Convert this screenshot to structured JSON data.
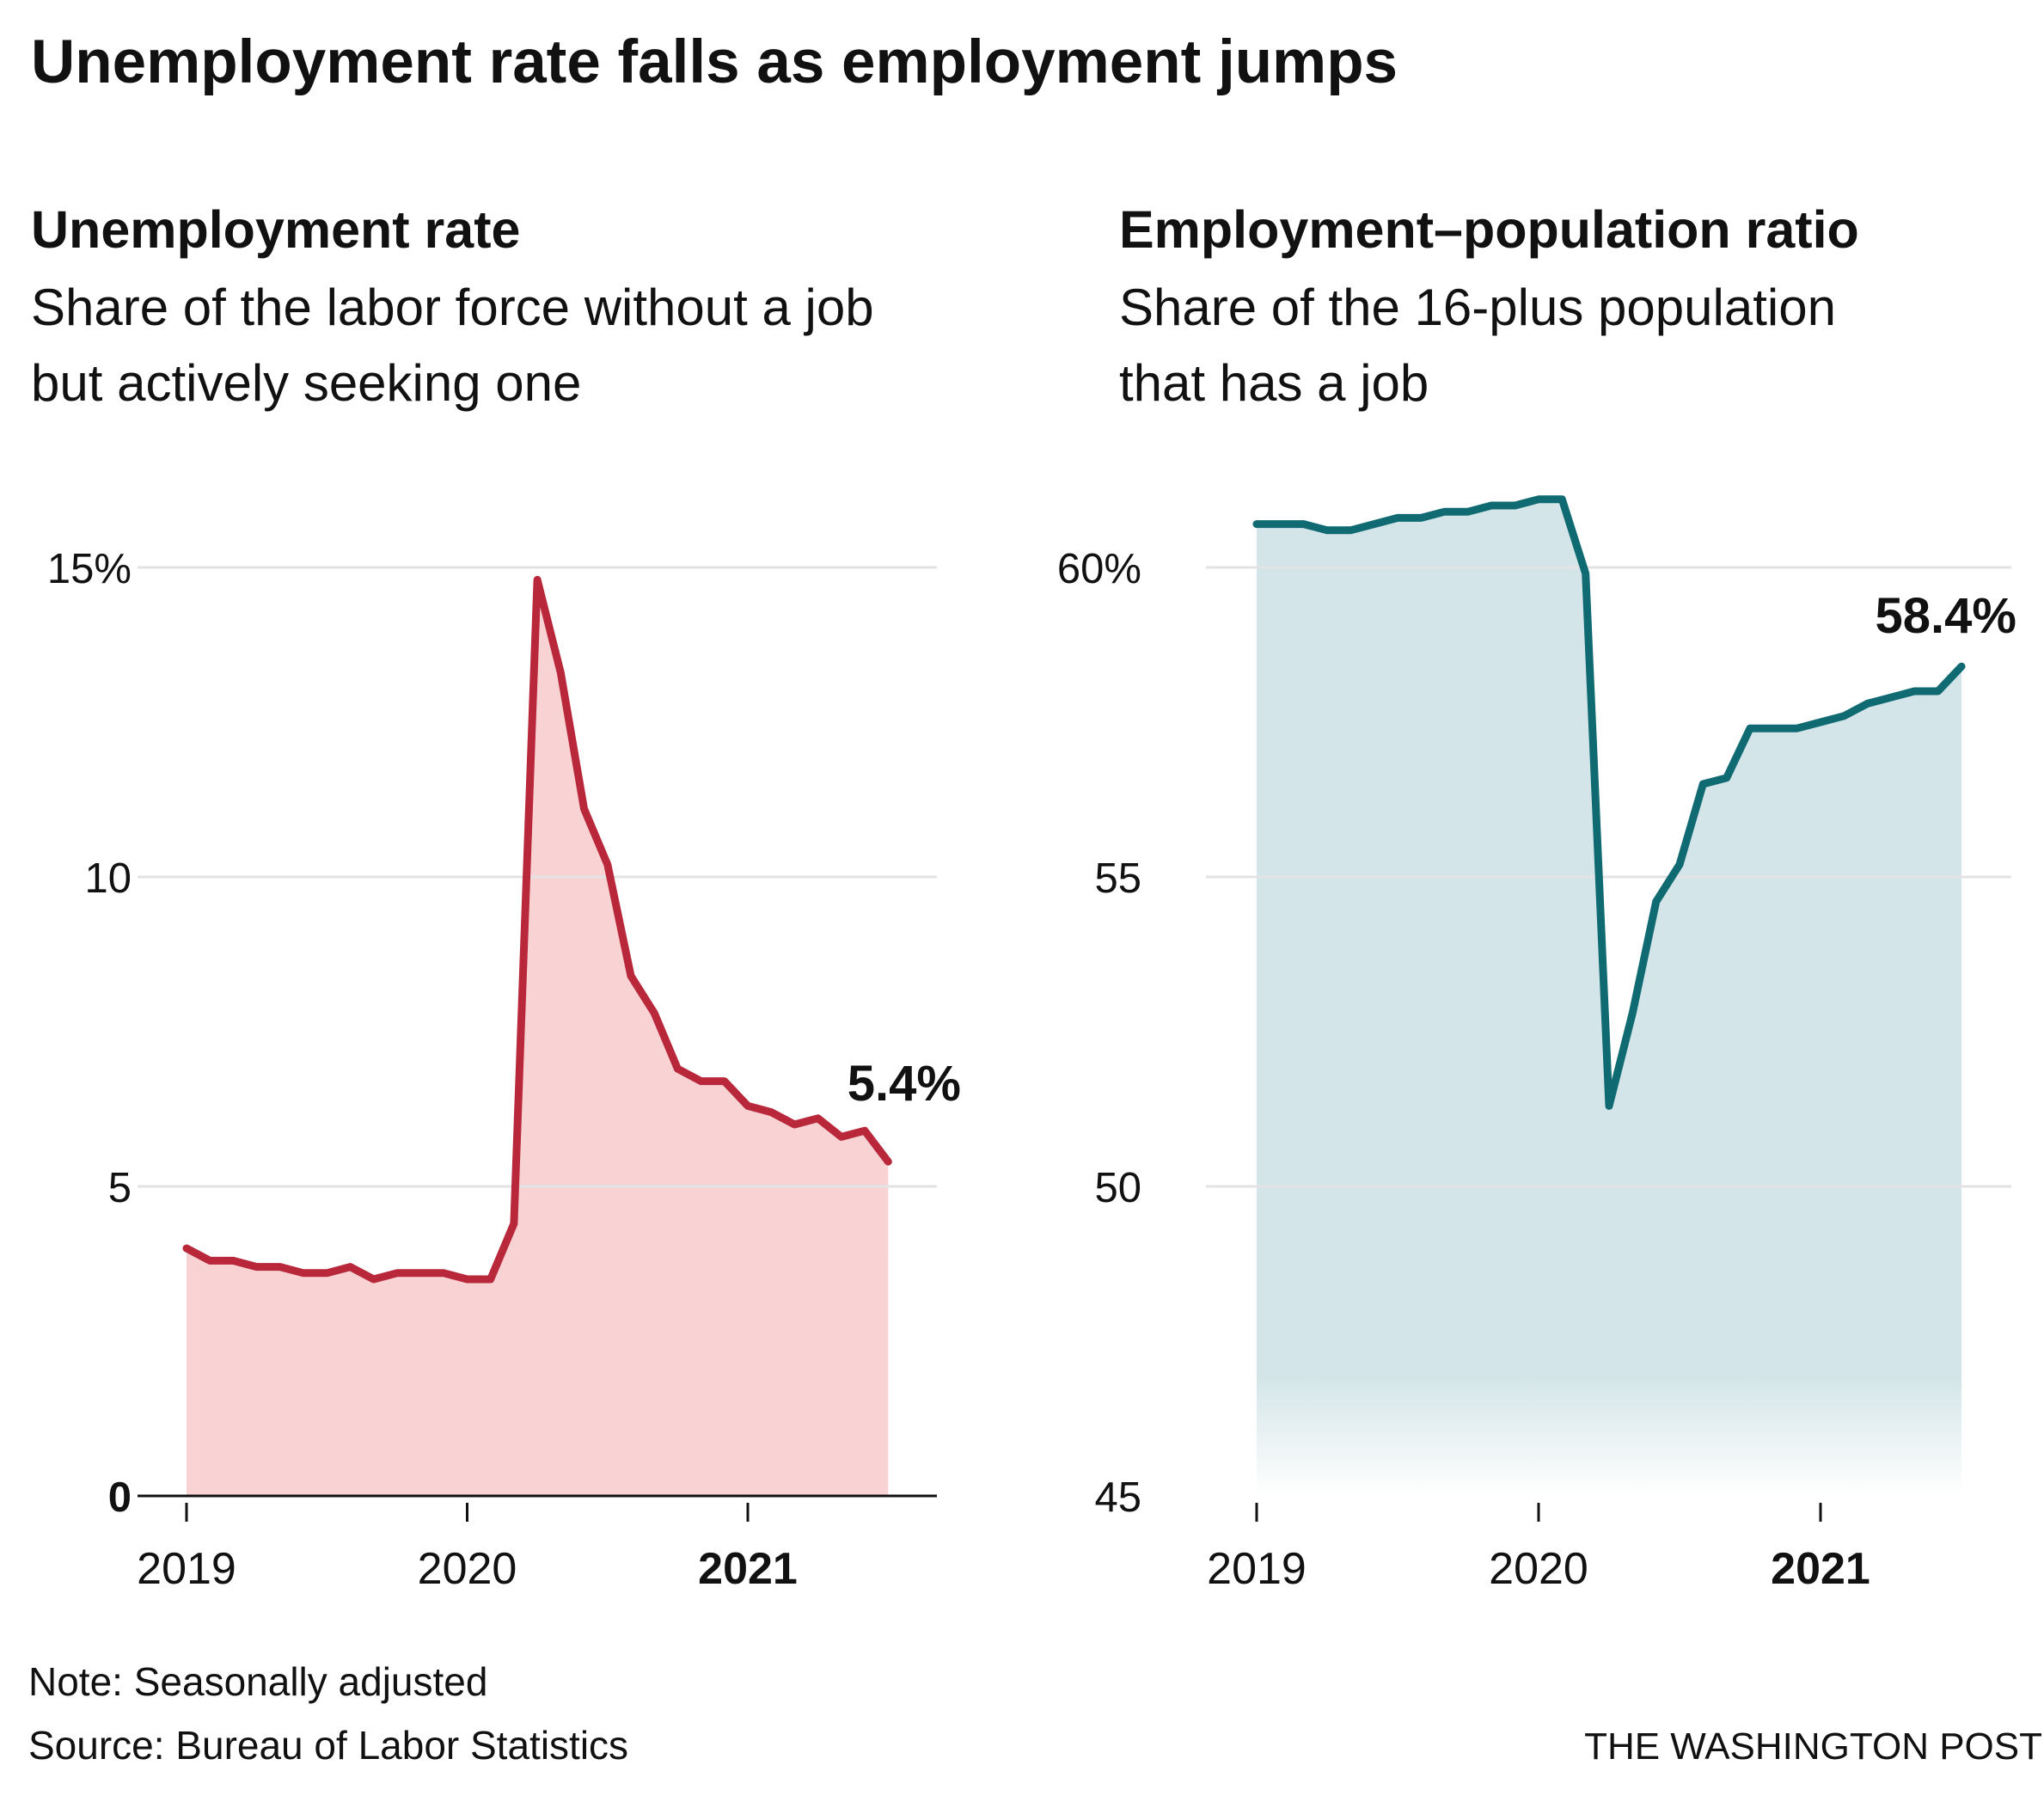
{
  "title": "Unemployment rate falls as employment jumps",
  "note": "Note: Seasonally adjusted",
  "source": "Source: Bureau of Labor Statistics",
  "credit": "THE WASHINGTON POST",
  "colors": {
    "unemployment_line": "#b8283a",
    "unemployment_fill": "#f9d3d4",
    "employment_line": "#0f6a72",
    "employment_fill": "#d3e5e8",
    "grid": "#e3e3e3",
    "axis": "#111111",
    "text": "#111111"
  },
  "chart_data": [
    {
      "type": "area",
      "title": "Unemployment rate",
      "subtitle": [
        "Share of the labor force without a job",
        "but actively seeking one"
      ],
      "x_tick_labels": [
        "2019",
        "2020",
        "2021"
      ],
      "x_tick_bold": [
        false,
        false,
        true
      ],
      "y_tick_labels": [
        "0",
        "5",
        "10",
        "15%"
      ],
      "y_tick_values": [
        0,
        5,
        10,
        15
      ],
      "y_tick_bold": [
        true,
        false,
        false,
        false
      ],
      "ylim": [
        0,
        15
      ],
      "baseline_axis": true,
      "grid": true,
      "end_label": "5.4%",
      "x": [
        "2019-01",
        "2019-02",
        "2019-03",
        "2019-04",
        "2019-05",
        "2019-06",
        "2019-07",
        "2019-08",
        "2019-09",
        "2019-10",
        "2019-11",
        "2019-12",
        "2020-01",
        "2020-02",
        "2020-03",
        "2020-04",
        "2020-05",
        "2020-06",
        "2020-07",
        "2020-08",
        "2020-09",
        "2020-10",
        "2020-11",
        "2020-12",
        "2021-01",
        "2021-02",
        "2021-03",
        "2021-04",
        "2021-05",
        "2021-06",
        "2021-07"
      ],
      "values": [
        4.0,
        3.8,
        3.8,
        3.7,
        3.7,
        3.6,
        3.6,
        3.7,
        3.5,
        3.6,
        3.6,
        3.6,
        3.5,
        3.5,
        4.4,
        14.8,
        13.3,
        11.1,
        10.2,
        8.4,
        7.8,
        6.9,
        6.7,
        6.7,
        6.3,
        6.2,
        6.0,
        6.1,
        5.8,
        5.9,
        5.4
      ]
    },
    {
      "type": "area",
      "title": "Employment–population ratio",
      "subtitle": [
        "Share of the 16-plus population",
        "that has a job"
      ],
      "x_tick_labels": [
        "2019",
        "2020",
        "2021"
      ],
      "x_tick_bold": [
        false,
        false,
        true
      ],
      "y_tick_labels": [
        "45",
        "50",
        "55",
        "60%"
      ],
      "y_tick_values": [
        45,
        50,
        55,
        60
      ],
      "y_tick_bold": [
        false,
        false,
        false,
        false
      ],
      "ylim": [
        45,
        61
      ],
      "baseline_axis": false,
      "grid": true,
      "end_label": "58.4%",
      "x": [
        "2019-01",
        "2019-02",
        "2019-03",
        "2019-04",
        "2019-05",
        "2019-06",
        "2019-07",
        "2019-08",
        "2019-09",
        "2019-10",
        "2019-11",
        "2019-12",
        "2020-01",
        "2020-02",
        "2020-03",
        "2020-04",
        "2020-05",
        "2020-06",
        "2020-07",
        "2020-08",
        "2020-09",
        "2020-10",
        "2020-11",
        "2020-12",
        "2021-01",
        "2021-02",
        "2021-03",
        "2021-04",
        "2021-05",
        "2021-06",
        "2021-07"
      ],
      "values": [
        60.7,
        60.7,
        60.7,
        60.6,
        60.6,
        60.7,
        60.8,
        60.8,
        60.9,
        60.9,
        61.0,
        61.0,
        61.1,
        61.1,
        59.9,
        51.3,
        52.8,
        54.6,
        55.2,
        56.5,
        56.6,
        57.4,
        57.4,
        57.4,
        57.5,
        57.6,
        57.8,
        57.9,
        58.0,
        58.0,
        58.4
      ]
    }
  ]
}
